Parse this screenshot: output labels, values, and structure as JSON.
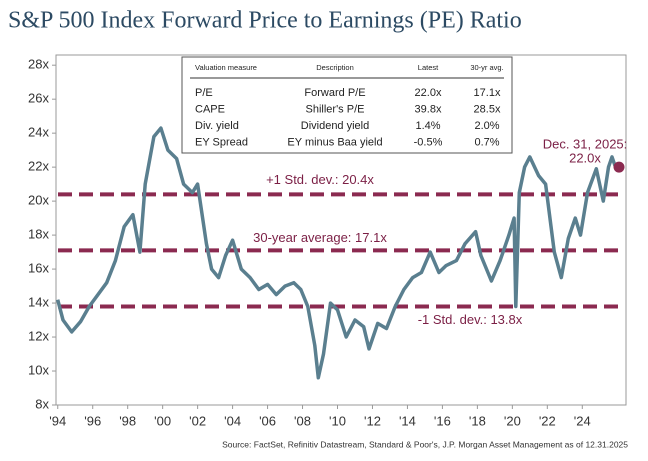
{
  "chart_data": {
    "type": "line",
    "title": "S&P 500 Index Forward Price to Earnings (PE) Ratio",
    "source": "Source: FactSet, Refinitiv Datastream, Standard & Poor's, J.P. Morgan Asset Management as of 12.31.2025",
    "color": "#5a7f8f",
    "ref_color": "#8b2a50",
    "xlim": [
      1993.9,
      2026.5
    ],
    "ylim": [
      8,
      28.6
    ],
    "xticks": [
      {
        "value": 1994,
        "label": "'94"
      },
      {
        "value": 1996,
        "label": "'96"
      },
      {
        "value": 1998,
        "label": "'98"
      },
      {
        "value": 2000,
        "label": "'00"
      },
      {
        "value": 2002,
        "label": "'02"
      },
      {
        "value": 2004,
        "label": "'04"
      },
      {
        "value": 2006,
        "label": "'06"
      },
      {
        "value": 2008,
        "label": "'08"
      },
      {
        "value": 2010,
        "label": "'10"
      },
      {
        "value": 2012,
        "label": "'12"
      },
      {
        "value": 2014,
        "label": "'14"
      },
      {
        "value": 2016,
        "label": "'16"
      },
      {
        "value": 2018,
        "label": "'18"
      },
      {
        "value": 2020,
        "label": "'20"
      },
      {
        "value": 2022,
        "label": "'22"
      },
      {
        "value": 2024,
        "label": "'24"
      }
    ],
    "yticks": [
      {
        "value": 8,
        "label": "8x"
      },
      {
        "value": 10,
        "label": "10x"
      },
      {
        "value": 12,
        "label": "12x"
      },
      {
        "value": 14,
        "label": "14x"
      },
      {
        "value": 16,
        "label": "16x"
      },
      {
        "value": 18,
        "label": "18x"
      },
      {
        "value": 20,
        "label": "20x"
      },
      {
        "value": 22,
        "label": "22x"
      },
      {
        "value": 24,
        "label": "24x"
      },
      {
        "value": 26,
        "label": "26x"
      },
      {
        "value": 28,
        "label": "28x"
      }
    ],
    "x": [
      1994.0,
      1994.3,
      1994.8,
      1995.3,
      1995.8,
      1996.3,
      1996.8,
      1997.3,
      1997.8,
      1998.3,
      1998.7,
      1999.0,
      1999.5,
      1999.9,
      2000.3,
      2000.8,
      2001.2,
      2001.7,
      2002.0,
      2002.5,
      2002.8,
      2003.2,
      2003.6,
      2004.0,
      2004.5,
      2005.0,
      2005.5,
      2006.0,
      2006.5,
      2007.0,
      2007.5,
      2007.9,
      2008.3,
      2008.7,
      2008.9,
      2009.2,
      2009.6,
      2010.0,
      2010.5,
      2011.0,
      2011.5,
      2011.8,
      2012.3,
      2012.8,
      2013.3,
      2013.8,
      2014.3,
      2014.8,
      2015.3,
      2015.8,
      2016.2,
      2016.8,
      2017.3,
      2017.9,
      2018.2,
      2018.8,
      2019.3,
      2019.8,
      2020.1,
      2020.2,
      2020.4,
      2020.7,
      2021.0,
      2021.5,
      2021.9,
      2022.4,
      2022.8,
      2023.2,
      2023.6,
      2023.9,
      2024.3,
      2024.8,
      2025.2,
      2025.5,
      2025.7,
      2025.9
    ],
    "values": [
      14.2,
      13.0,
      12.3,
      12.9,
      13.8,
      14.5,
      15.2,
      16.5,
      18.5,
      19.2,
      17.0,
      21.0,
      23.8,
      24.3,
      23.0,
      22.5,
      21.0,
      20.5,
      21.0,
      17.5,
      16.0,
      15.5,
      16.8,
      17.7,
      16.0,
      15.5,
      14.8,
      15.1,
      14.5,
      15.0,
      15.2,
      14.8,
      13.8,
      11.5,
      9.6,
      11.0,
      14.0,
      13.6,
      12.0,
      13.0,
      12.6,
      11.3,
      12.8,
      12.5,
      13.8,
      14.8,
      15.5,
      15.8,
      17.0,
      15.8,
      16.2,
      16.5,
      17.5,
      18.2,
      16.8,
      15.3,
      16.5,
      18.0,
      19.0,
      13.8,
      20.5,
      22.0,
      22.6,
      21.5,
      21.0,
      17.0,
      15.5,
      17.8,
      19.0,
      18.0,
      20.5,
      21.9,
      20.0,
      22.0,
      22.6,
      22.0
    ],
    "reference_lines": [
      {
        "label": "+1 Std. dev.: 20.4x",
        "value": 20.4
      },
      {
        "label": "30-year average: 17.1x",
        "value": 17.1
      },
      {
        "label": "-1 Std. dev.: 13.8x",
        "value": 13.8
      }
    ],
    "endpoint": {
      "label": [
        "Dec. 31, 2025:",
        "22.0x"
      ],
      "x": 2026.1,
      "value": 22.0
    },
    "table": {
      "columns": [
        "Valuation measure",
        "Description",
        "Latest",
        "30-yr avg."
      ],
      "rows": [
        [
          "P/E",
          "Forward P/E",
          "22.0x",
          "17.1x"
        ],
        [
          "CAPE",
          "Shiller's P/E",
          "39.8x",
          "28.5x"
        ],
        [
          "Div. yield",
          "Dividend yield",
          "1.4%",
          "2.0%"
        ],
        [
          "EY Spread",
          "EY minus Baa yield",
          "-0.5%",
          "0.7%"
        ]
      ]
    }
  }
}
